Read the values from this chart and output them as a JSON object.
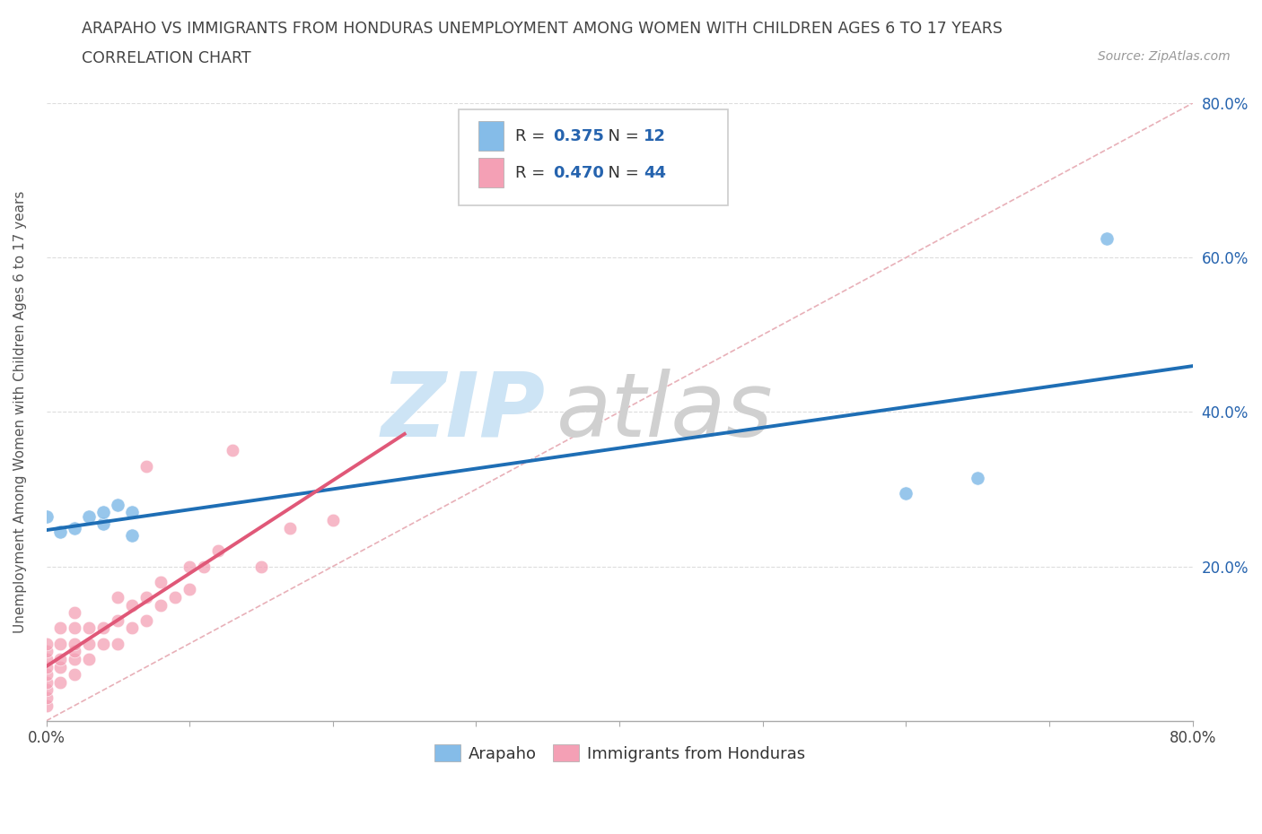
{
  "title_line1": "ARAPAHO VS IMMIGRANTS FROM HONDURAS UNEMPLOYMENT AMONG WOMEN WITH CHILDREN AGES 6 TO 17 YEARS",
  "title_line2": "CORRELATION CHART",
  "source_text": "Source: ZipAtlas.com",
  "ylabel": "Unemployment Among Women with Children Ages 6 to 17 years",
  "xlim": [
    0.0,
    0.8
  ],
  "ylim": [
    0.0,
    0.8
  ],
  "xticks": [
    0.0,
    0.1,
    0.2,
    0.3,
    0.4,
    0.5,
    0.6,
    0.7,
    0.8
  ],
  "yticks": [
    0.0,
    0.2,
    0.4,
    0.6,
    0.8
  ],
  "arapaho_color": "#85bce8",
  "honduras_color": "#f4a0b5",
  "arapaho_line_color": "#1e6eb5",
  "honduras_line_color": "#e05878",
  "diagonal_color": "#e8b0b8",
  "R_arapaho": 0.375,
  "N_arapaho": 12,
  "R_honduras": 0.47,
  "N_honduras": 44,
  "arapaho_x": [
    0.0,
    0.01,
    0.02,
    0.03,
    0.04,
    0.04,
    0.05,
    0.06,
    0.06,
    0.6,
    0.65,
    0.74
  ],
  "arapaho_y": [
    0.265,
    0.245,
    0.25,
    0.265,
    0.255,
    0.27,
    0.28,
    0.27,
    0.24,
    0.295,
    0.315,
    0.625
  ],
  "honduras_x": [
    0.0,
    0.0,
    0.0,
    0.0,
    0.0,
    0.0,
    0.0,
    0.0,
    0.0,
    0.01,
    0.01,
    0.01,
    0.01,
    0.01,
    0.02,
    0.02,
    0.02,
    0.02,
    0.02,
    0.02,
    0.03,
    0.03,
    0.03,
    0.04,
    0.04,
    0.05,
    0.05,
    0.05,
    0.06,
    0.06,
    0.07,
    0.07,
    0.07,
    0.08,
    0.08,
    0.09,
    0.1,
    0.1,
    0.11,
    0.12,
    0.13,
    0.15,
    0.17,
    0.2
  ],
  "honduras_y": [
    0.02,
    0.03,
    0.04,
    0.05,
    0.06,
    0.07,
    0.08,
    0.09,
    0.1,
    0.05,
    0.07,
    0.08,
    0.1,
    0.12,
    0.06,
    0.08,
    0.09,
    0.1,
    0.12,
    0.14,
    0.08,
    0.1,
    0.12,
    0.1,
    0.12,
    0.1,
    0.13,
    0.16,
    0.12,
    0.15,
    0.13,
    0.16,
    0.33,
    0.15,
    0.18,
    0.16,
    0.17,
    0.2,
    0.2,
    0.22,
    0.35,
    0.2,
    0.25,
    0.26
  ],
  "legend_label_arapaho": "Arapaho",
  "legend_label_honduras": "Immigrants from Honduras",
  "blue_text_color": "#2563ae",
  "title_color": "#444444",
  "axis_label_color": "#555555",
  "watermark_zip_color": "#cde4f5",
  "watermark_atlas_color": "#d0d0d0"
}
